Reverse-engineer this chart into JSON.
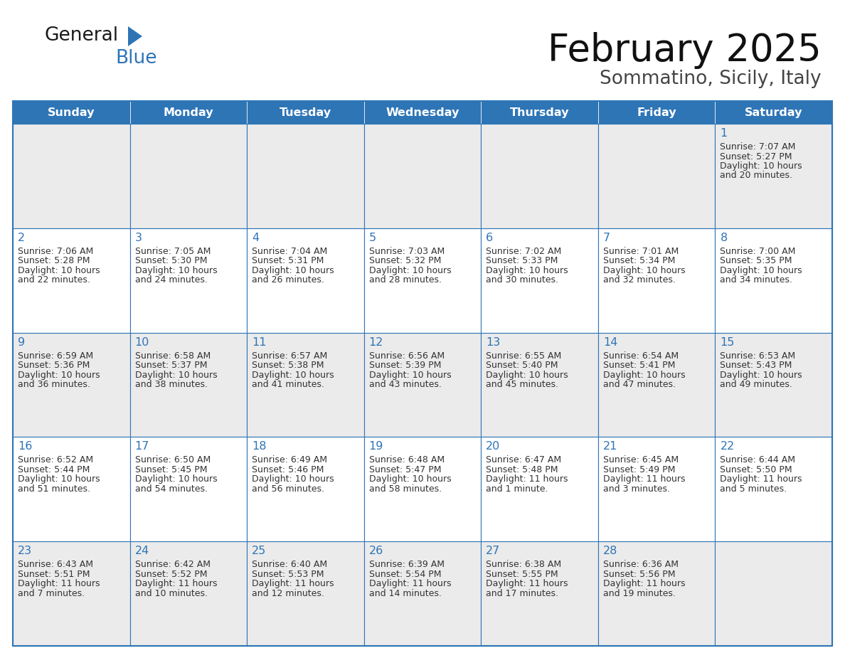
{
  "title": "February 2025",
  "subtitle": "Sommatino, Sicily, Italy",
  "days_of_week": [
    "Sunday",
    "Monday",
    "Tuesday",
    "Wednesday",
    "Thursday",
    "Friday",
    "Saturday"
  ],
  "header_bg": "#2E75B6",
  "header_text_color": "#FFFFFF",
  "cell_bg_odd": "#EBEBEB",
  "cell_bg_even": "#FFFFFF",
  "border_color": "#2E75B6",
  "day_number_color": "#2E75B6",
  "text_color": "#333333",
  "calendar": [
    [
      null,
      null,
      null,
      null,
      null,
      null,
      {
        "day": 1,
        "sunrise": "7:07 AM",
        "sunset": "5:27 PM",
        "daylight": "10 hours",
        "daylight2": "and 20 minutes."
      }
    ],
    [
      {
        "day": 2,
        "sunrise": "7:06 AM",
        "sunset": "5:28 PM",
        "daylight": "10 hours",
        "daylight2": "and 22 minutes."
      },
      {
        "day": 3,
        "sunrise": "7:05 AM",
        "sunset": "5:30 PM",
        "daylight": "10 hours",
        "daylight2": "and 24 minutes."
      },
      {
        "day": 4,
        "sunrise": "7:04 AM",
        "sunset": "5:31 PM",
        "daylight": "10 hours",
        "daylight2": "and 26 minutes."
      },
      {
        "day": 5,
        "sunrise": "7:03 AM",
        "sunset": "5:32 PM",
        "daylight": "10 hours",
        "daylight2": "and 28 minutes."
      },
      {
        "day": 6,
        "sunrise": "7:02 AM",
        "sunset": "5:33 PM",
        "daylight": "10 hours",
        "daylight2": "and 30 minutes."
      },
      {
        "day": 7,
        "sunrise": "7:01 AM",
        "sunset": "5:34 PM",
        "daylight": "10 hours",
        "daylight2": "and 32 minutes."
      },
      {
        "day": 8,
        "sunrise": "7:00 AM",
        "sunset": "5:35 PM",
        "daylight": "10 hours",
        "daylight2": "and 34 minutes."
      }
    ],
    [
      {
        "day": 9,
        "sunrise": "6:59 AM",
        "sunset": "5:36 PM",
        "daylight": "10 hours",
        "daylight2": "and 36 minutes."
      },
      {
        "day": 10,
        "sunrise": "6:58 AM",
        "sunset": "5:37 PM",
        "daylight": "10 hours",
        "daylight2": "and 38 minutes."
      },
      {
        "day": 11,
        "sunrise": "6:57 AM",
        "sunset": "5:38 PM",
        "daylight": "10 hours",
        "daylight2": "and 41 minutes."
      },
      {
        "day": 12,
        "sunrise": "6:56 AM",
        "sunset": "5:39 PM",
        "daylight": "10 hours",
        "daylight2": "and 43 minutes."
      },
      {
        "day": 13,
        "sunrise": "6:55 AM",
        "sunset": "5:40 PM",
        "daylight": "10 hours",
        "daylight2": "and 45 minutes."
      },
      {
        "day": 14,
        "sunrise": "6:54 AM",
        "sunset": "5:41 PM",
        "daylight": "10 hours",
        "daylight2": "and 47 minutes."
      },
      {
        "day": 15,
        "sunrise": "6:53 AM",
        "sunset": "5:43 PM",
        "daylight": "10 hours",
        "daylight2": "and 49 minutes."
      }
    ],
    [
      {
        "day": 16,
        "sunrise": "6:52 AM",
        "sunset": "5:44 PM",
        "daylight": "10 hours",
        "daylight2": "and 51 minutes."
      },
      {
        "day": 17,
        "sunrise": "6:50 AM",
        "sunset": "5:45 PM",
        "daylight": "10 hours",
        "daylight2": "and 54 minutes."
      },
      {
        "day": 18,
        "sunrise": "6:49 AM",
        "sunset": "5:46 PM",
        "daylight": "10 hours",
        "daylight2": "and 56 minutes."
      },
      {
        "day": 19,
        "sunrise": "6:48 AM",
        "sunset": "5:47 PM",
        "daylight": "10 hours",
        "daylight2": "and 58 minutes."
      },
      {
        "day": 20,
        "sunrise": "6:47 AM",
        "sunset": "5:48 PM",
        "daylight": "11 hours",
        "daylight2": "and 1 minute."
      },
      {
        "day": 21,
        "sunrise": "6:45 AM",
        "sunset": "5:49 PM",
        "daylight": "11 hours",
        "daylight2": "and 3 minutes."
      },
      {
        "day": 22,
        "sunrise": "6:44 AM",
        "sunset": "5:50 PM",
        "daylight": "11 hours",
        "daylight2": "and 5 minutes."
      }
    ],
    [
      {
        "day": 23,
        "sunrise": "6:43 AM",
        "sunset": "5:51 PM",
        "daylight": "11 hours",
        "daylight2": "and 7 minutes."
      },
      {
        "day": 24,
        "sunrise": "6:42 AM",
        "sunset": "5:52 PM",
        "daylight": "11 hours",
        "daylight2": "and 10 minutes."
      },
      {
        "day": 25,
        "sunrise": "6:40 AM",
        "sunset": "5:53 PM",
        "daylight": "11 hours",
        "daylight2": "and 12 minutes."
      },
      {
        "day": 26,
        "sunrise": "6:39 AM",
        "sunset": "5:54 PM",
        "daylight": "11 hours",
        "daylight2": "and 14 minutes."
      },
      {
        "day": 27,
        "sunrise": "6:38 AM",
        "sunset": "5:55 PM",
        "daylight": "11 hours",
        "daylight2": "and 17 minutes."
      },
      {
        "day": 28,
        "sunrise": "6:36 AM",
        "sunset": "5:56 PM",
        "daylight": "11 hours",
        "daylight2": "and 19 minutes."
      },
      null
    ]
  ],
  "logo_color_general": "#1a1a1a",
  "logo_color_blue": "#2E75B6"
}
